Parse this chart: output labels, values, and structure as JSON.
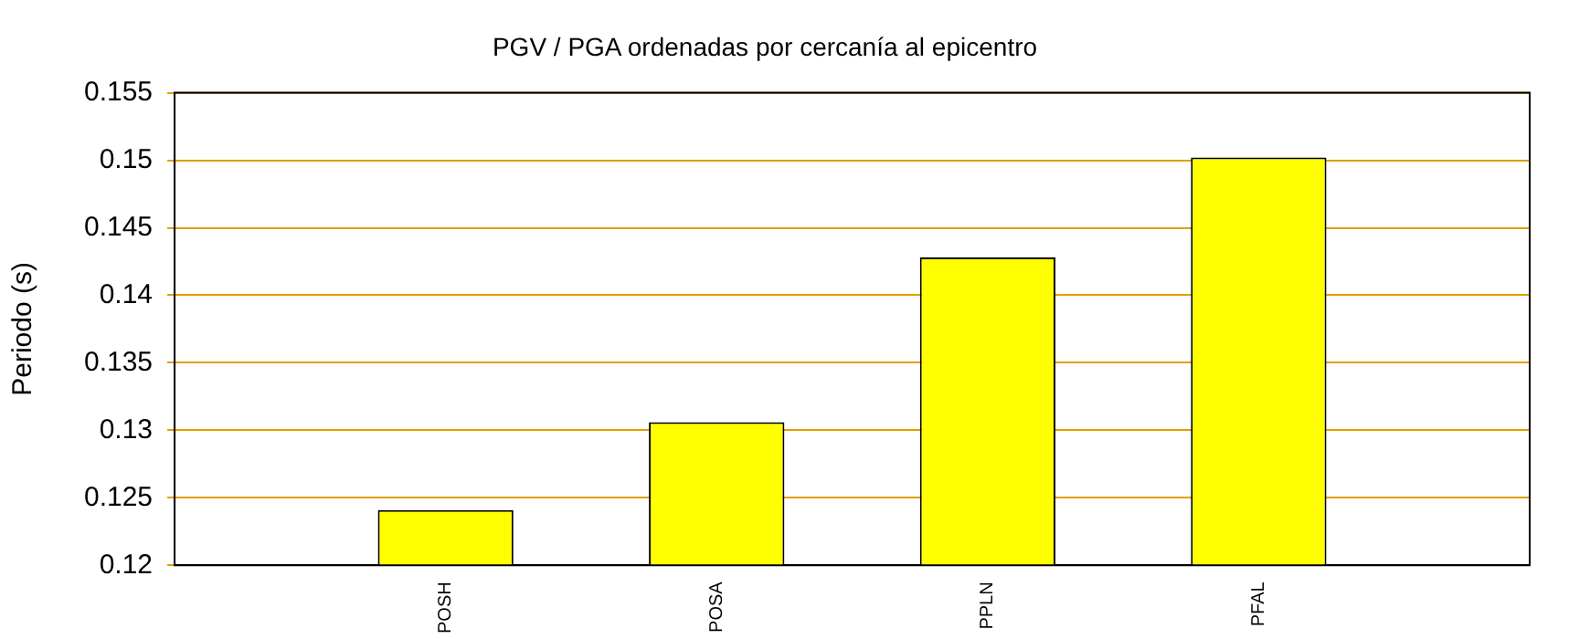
{
  "chart_data": {
    "type": "bar",
    "title": "PGV / PGA ordenadas por cercanía al epicentro",
    "ylabel": "Periodo (s)",
    "categories": [
      "POSH",
      "POSA",
      "PPLN",
      "PFAL"
    ],
    "values": [
      0.1241,
      0.1306,
      0.1428,
      0.1502
    ],
    "color": "#ffff00",
    "ylim": [
      0.12,
      0.155
    ],
    "yticks": [
      0.12,
      0.125,
      0.13,
      0.135,
      0.14,
      0.145,
      0.15,
      0.155
    ],
    "grid": "y",
    "legend": false
  }
}
